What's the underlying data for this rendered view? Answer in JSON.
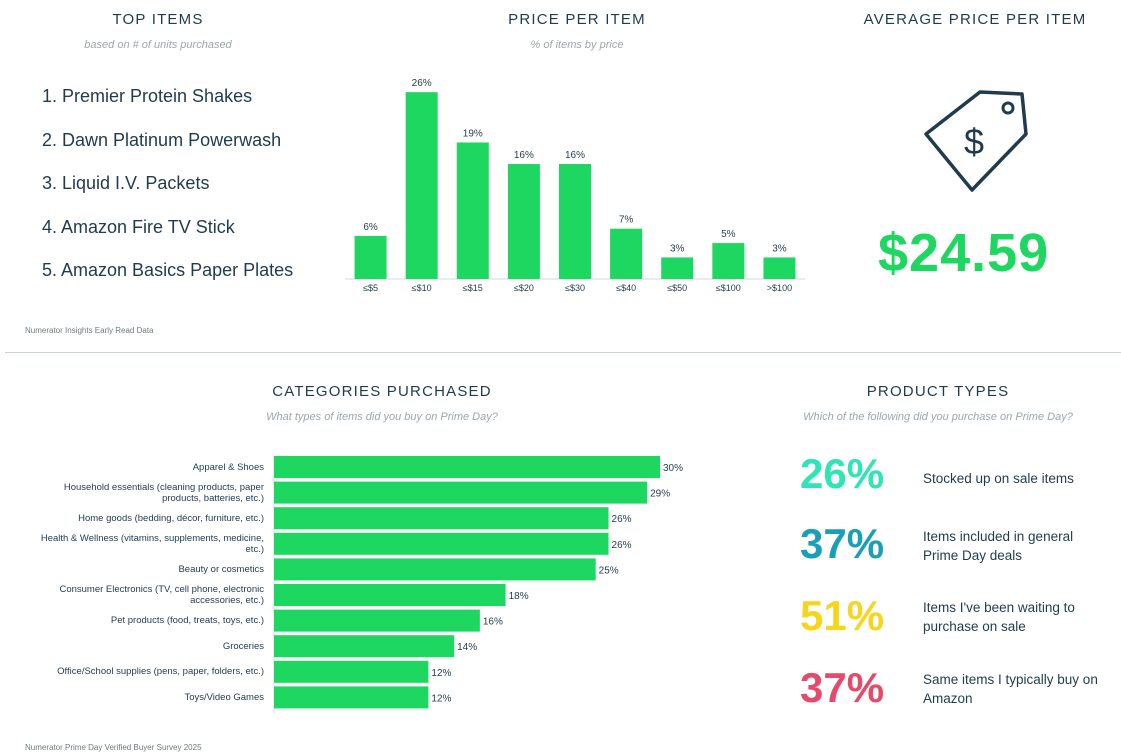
{
  "top_items": {
    "title": "TOP ITEMS",
    "subtitle": "based on # of units purchased",
    "items": [
      "1. Premier Protein Shakes",
      "2. Dawn Platinum Powerwash",
      "3. Liquid I.V. Packets",
      "4. Amazon Fire TV Stick",
      "5. Amazon Basics Paper Plates"
    ]
  },
  "price_section": {
    "title": "PRICE PER ITEM",
    "subtitle": "% of items by price"
  },
  "avg_price": {
    "title": "AVERAGE PRICE PER ITEM",
    "value": "$24.59",
    "icon": "price-tag-icon"
  },
  "source_top": "Numerator Insights Early Read Data",
  "categories_section": {
    "title": "CATEGORIES PURCHASED",
    "subtitle": "What types of items did you buy on Prime Day?"
  },
  "product_types": {
    "title": "PRODUCT TYPES",
    "subtitle": "Which of the following did you purchase on Prime Day?",
    "items": [
      {
        "value": "26%",
        "label": "Stocked up on sale items",
        "color": "#2ee6b4"
      },
      {
        "value": "37%",
        "label": "Items included in general Prime Day deals",
        "color": "#1a9fb8"
      },
      {
        "value": "51%",
        "label": "Items I've been waiting to purchase on sale",
        "color": "#f7d51d"
      },
      {
        "value": "37%",
        "label": "Same items I typically buy on Amazon",
        "color": "#e54a6b"
      }
    ]
  },
  "source_bottom": "Numerator Prime Day Verified Buyer Survey 2025",
  "colors": {
    "bar": "#1ed760",
    "text": "#1f3b4d"
  },
  "chart_data": [
    {
      "type": "bar",
      "title": "PRICE PER ITEM",
      "subtitle": "% of items by price",
      "categories": [
        "≤$5",
        "≤$10",
        "≤$15",
        "≤$20",
        "≤$30",
        "≤$40",
        "≤$50",
        "≤$100",
        ">$100"
      ],
      "values": [
        6,
        26,
        19,
        16,
        16,
        7,
        3,
        5,
        3
      ],
      "labels": [
        "6%",
        "26%",
        "19%",
        "16%",
        "16%",
        "7%",
        "3%",
        "5%",
        "3%"
      ],
      "ylim": [
        0,
        27
      ],
      "grid": false
    },
    {
      "type": "bar",
      "orientation": "horizontal",
      "title": "CATEGORIES PURCHASED",
      "subtitle": "What types of items did you buy on Prime Day?",
      "categories": [
        "Apparel & Shoes",
        "Household essentials (cleaning products, paper products, batteries, etc.)",
        "Home goods (bedding, décor, furniture, etc.)",
        "Health & Wellness (vitamins, supplements, medicine, etc.)",
        "Beauty or cosmetics",
        "Consumer Electronics (TV, cell phone, electronic accessories, etc.)",
        "Pet products (food, treats, toys, etc.)",
        "Groceries",
        "Office/School supplies (pens, paper, folders, etc.)",
        "Toys/Video Games"
      ],
      "values": [
        30,
        29,
        26,
        26,
        25,
        18,
        16,
        14,
        12,
        12
      ],
      "labels": [
        "30%",
        "29%",
        "26%",
        "26%",
        "25%",
        "18%",
        "16%",
        "14%",
        "12%",
        "12%"
      ],
      "xlim": [
        0,
        30
      ],
      "grid": false
    }
  ]
}
